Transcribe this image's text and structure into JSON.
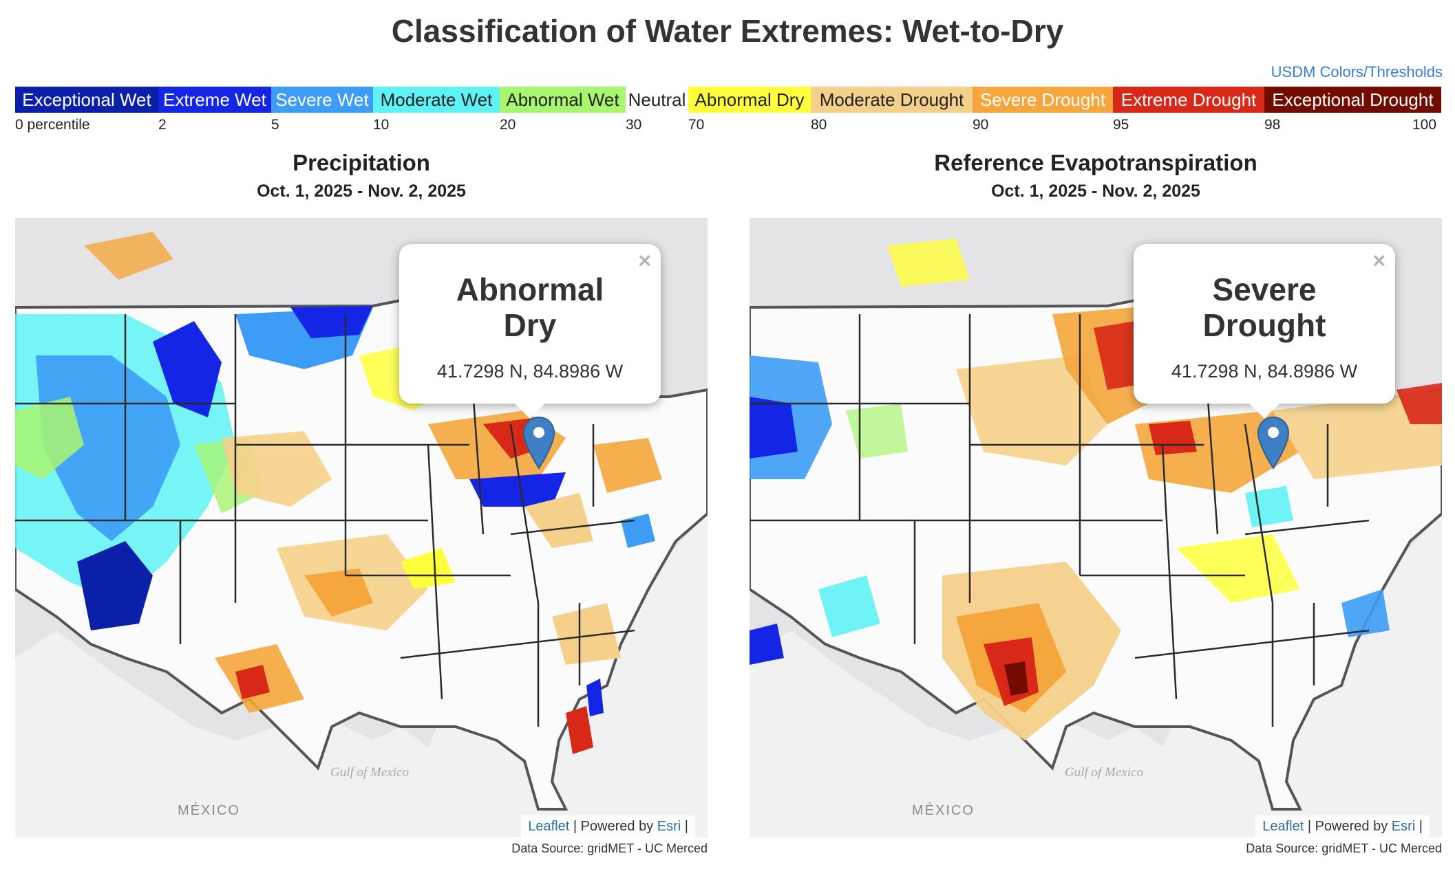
{
  "title": "Classification of Water Extremes: Wet-to-Dry",
  "usdm_link": "USDM Colors/Thresholds",
  "legend": [
    {
      "label": "Exceptional Wet",
      "color": "#0b20a8",
      "text_color": "#ffffff"
    },
    {
      "label": "Extreme Wet",
      "color": "#1525e6",
      "text_color": "#ffffff"
    },
    {
      "label": "Severe Wet",
      "color": "#3d9cf5",
      "text_color": "#ffffff"
    },
    {
      "label": "Moderate Wet",
      "color": "#5ff2f5",
      "text_color": "#222222"
    },
    {
      "label": "Abnormal Wet",
      "color": "#a8f570",
      "text_color": "#222222"
    },
    {
      "label": "Neutral",
      "color": "#ffffff",
      "text_color": "#222222"
    },
    {
      "label": "Abnormal Dry",
      "color": "#ffff3c",
      "text_color": "#222222"
    },
    {
      "label": "Moderate Drought",
      "color": "#f5d08a",
      "text_color": "#222222"
    },
    {
      "label": "Severe Drought",
      "color": "#f5a63c",
      "text_color": "#ffffff"
    },
    {
      "label": "Extreme Drought",
      "color": "#d82818",
      "text_color": "#ffffff"
    },
    {
      "label": "Exceptional Drought",
      "color": "#730c00",
      "text_color": "#ffffff"
    }
  ],
  "legend_ticks": [
    "0 percentile",
    "2",
    "5",
    "10",
    "20",
    "30",
    "70",
    "80",
    "90",
    "95",
    "98",
    "100"
  ],
  "panels": [
    {
      "title": "Precipitation",
      "date_range": "Oct. 1, 2025 - Nov. 2, 2025",
      "popup_class": "Abnormal Dry",
      "popup_coords": "41.7298 N, 84.8986 W",
      "close_symbol": "×",
      "label_mexico": "MÉXICO",
      "label_gulf": "Gulf of Mexico",
      "attribution_leaflet": "Leaflet",
      "attribution_powered": "| Powered by",
      "attribution_esri": "Esri",
      "attribution_end": "|",
      "data_source": "Data Source: gridMET - UC Merced"
    },
    {
      "title": "Reference Evapotranspiration",
      "date_range": "Oct. 1, 2025 - Nov. 2, 2025",
      "popup_class": "Severe Drought",
      "popup_coords": "41.7298 N, 84.8986 W",
      "close_symbol": "×",
      "label_mexico": "MÉXICO",
      "label_gulf": "Gulf of Mexico",
      "attribution_leaflet": "Leaflet",
      "attribution_powered": "| Powered by",
      "attribution_esri": "Esri",
      "attribution_end": "|",
      "data_source": "Data Source: gridMET - UC Merced"
    }
  ]
}
